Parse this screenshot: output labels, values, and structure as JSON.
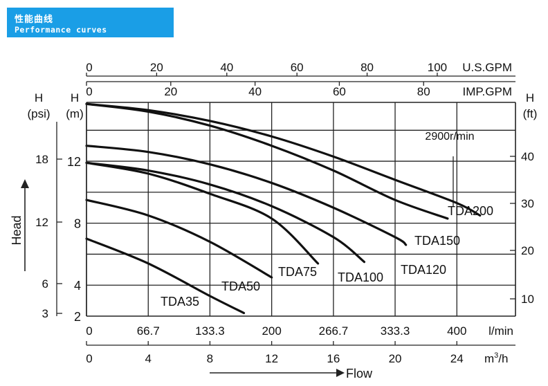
{
  "banner": {
    "title_zh": "性能曲线",
    "title_en": "Performance curves"
  },
  "chart_data": {
    "type": "line",
    "annotation": "2900r/min",
    "x_axes": {
      "usgpm": {
        "unit": "U.S.GPM",
        "ticks": [
          "0",
          "20",
          "40",
          "60",
          "80",
          "100"
        ],
        "range": [
          0,
          122.3
        ]
      },
      "impgpm": {
        "unit": "IMP.GPM",
        "ticks": [
          "0",
          "20",
          "40",
          "60",
          "80"
        ],
        "range": [
          0,
          101.8
        ]
      },
      "lmin": {
        "unit": "l/min",
        "ticks": [
          "0",
          "66.7",
          "133.3",
          "200",
          "266.7",
          "333.3",
          "400"
        ],
        "range": [
          0,
          463.3
        ]
      },
      "m3h": {
        "unit": "m³/h",
        "unit_base": "m",
        "unit_sup": "3",
        "unit_tail": "/h",
        "ticks": [
          "0",
          "4",
          "8",
          "12",
          "16",
          "20",
          "24"
        ],
        "range": [
          0,
          27.8
        ]
      }
    },
    "xlabel": "Flow",
    "y_axes": {
      "psi": {
        "label": "H",
        "unit": "(psi)",
        "ticks": [
          "3",
          "6",
          "12",
          "18"
        ],
        "tick_values": [
          3,
          6,
          12,
          18
        ]
      },
      "m": {
        "label": "H",
        "unit": "(m)",
        "ticks": [
          "2",
          "4",
          "8",
          "12"
        ],
        "tick_values": [
          2,
          4,
          8,
          12
        ]
      },
      "ft": {
        "label": "H",
        "unit": "(ft)",
        "ticks": [
          "10",
          "20",
          "30",
          "40"
        ],
        "tick_values": [
          10,
          20,
          30,
          40
        ]
      }
    },
    "ylabel": "Head",
    "ylim_m": [
      2,
      15.8
    ],
    "xlim_lmin": [
      0,
      463.3
    ],
    "grid": true,
    "series": [
      {
        "name": "TDA35",
        "x_lmin": [
          0,
          66.7,
          133.3,
          170
        ],
        "y_m": [
          7,
          5.4,
          3.3,
          2.2
        ]
      },
      {
        "name": "TDA50",
        "x_lmin": [
          0,
          66.7,
          133.3,
          200
        ],
        "y_m": [
          9.5,
          8.5,
          6.8,
          4.5
        ]
      },
      {
        "name": "TDA75",
        "x_lmin": [
          0,
          66.7,
          133.3,
          200,
          250
        ],
        "y_m": [
          11.9,
          11.2,
          9.9,
          8.3,
          5.4
        ]
      },
      {
        "name": "TDA100",
        "x_lmin": [
          0,
          66.7,
          133.3,
          200,
          266.7,
          300
        ],
        "y_m": [
          11.9,
          11.4,
          10.5,
          9.1,
          7.1,
          5.5
        ]
      },
      {
        "name": "TDA120",
        "x_lmin": [
          0,
          66.7,
          133.3,
          200,
          266.7,
          333.3,
          345
        ],
        "y_m": [
          13,
          12.6,
          11.8,
          10.6,
          9,
          7.1,
          6.6
        ]
      },
      {
        "name": "TDA150",
        "x_lmin": [
          0,
          66.7,
          133.3,
          200,
          266.7,
          333.3,
          390
        ],
        "y_m": [
          15.7,
          15.2,
          14.3,
          13,
          11.4,
          9.5,
          8.3
        ]
      },
      {
        "name": "TDA200",
        "x_lmin": [
          0,
          66.7,
          133.3,
          200,
          266.7,
          333.3,
          400,
          425
        ],
        "y_m": [
          15.7,
          15.3,
          14.6,
          13.6,
          12.3,
          10.8,
          9.3,
          8.5
        ]
      }
    ],
    "series_labels_pos": [
      "TDA35",
      "TDA50",
      "TDA75",
      "TDA100",
      "TDA120",
      "TDA150",
      "TDA200"
    ]
  }
}
